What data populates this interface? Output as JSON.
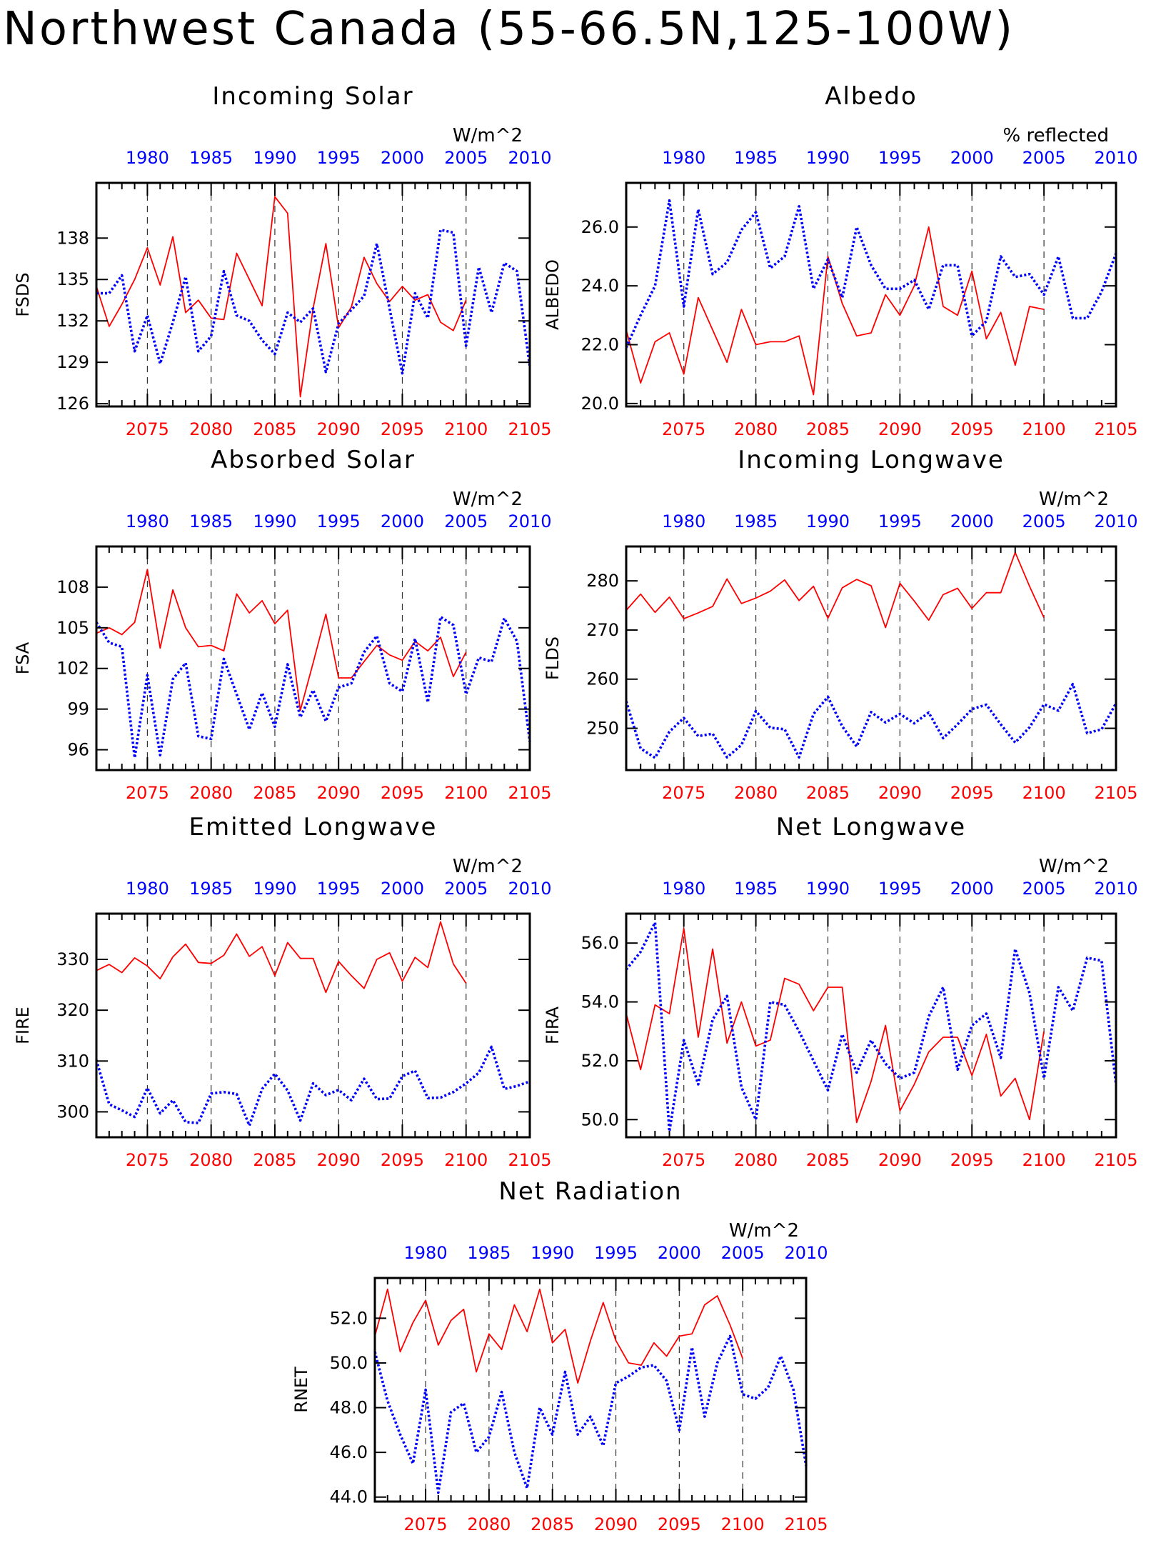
{
  "title": "Northwest Canada (55-66.5N,125-100W)",
  "colors": {
    "future": "#ff0000",
    "historical": "#0000ff",
    "axis": "#000000"
  },
  "chart_data": [
    {
      "id": "fsds",
      "type": "line",
      "title": "Incoming Solar",
      "ylabel": "FSDS",
      "units": "W/m^2",
      "ylim": [
        125.8,
        142
      ],
      "yticks": [
        126,
        129,
        132,
        135,
        138
      ],
      "ytick_labels": [
        "126",
        "129",
        "132",
        "135",
        "138"
      ],
      "bottom_axis": {
        "range": [
          2071,
          2105
        ],
        "major": [
          2075,
          2080,
          2085,
          2090,
          2095,
          2100,
          2105
        ],
        "labels": [
          "2075",
          "2080",
          "2085",
          "2090",
          "2095",
          "2100",
          "2105"
        ]
      },
      "top_axis": {
        "range": [
          1976,
          2010
        ],
        "major": [
          1980,
          1985,
          1990,
          1995,
          2000,
          2005,
          2010
        ],
        "labels": [
          "1980",
          "1985",
          "1990",
          "1995",
          "2000",
          "2005",
          "2010"
        ]
      },
      "gridlines_x": [
        2075,
        2080,
        2085,
        2090,
        2095,
        2100
      ],
      "series": [
        {
          "x0": 2071,
          "style": "solid",
          "color": "#ff0000",
          "values": [
            134.5,
            131.6,
            133.2,
            135.0,
            137.3,
            134.6,
            138.1,
            132.6,
            133.5,
            132.2,
            132.1,
            136.9,
            135.0,
            133.1,
            141.0,
            139.8,
            126.5,
            132.9,
            137.6,
            131.5,
            133.0,
            136.6,
            134.7,
            133.4,
            134.5,
            133.5,
            133.9,
            131.9,
            131.3,
            133.5
          ]
        },
        {
          "x0": 2071,
          "style": "dotted",
          "color": "#0000ff",
          "values": [
            134.0,
            134.0,
            135.3,
            129.8,
            132.4,
            128.9,
            131.9,
            135.2,
            129.8,
            130.9,
            135.6,
            132.4,
            132.0,
            130.6,
            129.6,
            132.6,
            131.9,
            132.9,
            128.3,
            131.8,
            132.8,
            133.8,
            137.6,
            132.9,
            128.2,
            134.0,
            132.2,
            138.6,
            138.4,
            130.2,
            135.9,
            132.6,
            136.2,
            135.6,
            128.7
          ]
        }
      ]
    },
    {
      "id": "albedo",
      "type": "line",
      "title": "Albedo",
      "ylabel": "ALBEDO",
      "units": "% reflected",
      "ylim": [
        19.9,
        27.5
      ],
      "yticks": [
        20,
        22,
        24,
        26
      ],
      "ytick_labels": [
        "20.0",
        "22.0",
        "24.0",
        "26.0"
      ],
      "bottom_axis": {
        "range": [
          2071,
          2105
        ],
        "major": [
          2075,
          2080,
          2085,
          2090,
          2095,
          2100,
          2105
        ],
        "labels": [
          "2075",
          "2080",
          "2085",
          "2090",
          "2095",
          "2100",
          "2105"
        ]
      },
      "top_axis": {
        "range": [
          1976,
          2010
        ],
        "major": [
          1980,
          1985,
          1990,
          1995,
          2000,
          2005,
          2010
        ],
        "labels": [
          "1980",
          "1985",
          "1990",
          "1995",
          "2000",
          "2005",
          "2010"
        ]
      },
      "gridlines_x": [
        2075,
        2080,
        2085,
        2090,
        2095,
        2100
      ],
      "series": [
        {
          "x0": 2071,
          "style": "solid",
          "color": "#ff0000",
          "values": [
            22.5,
            20.7,
            22.1,
            22.4,
            21.0,
            23.6,
            22.5,
            21.4,
            23.2,
            22.0,
            22.1,
            22.1,
            22.3,
            20.3,
            25.0,
            23.4,
            22.3,
            22.4,
            23.7,
            23.0,
            24.0,
            26.0,
            23.3,
            23.0,
            24.5,
            22.2,
            23.1,
            21.3,
            23.3,
            23.2
          ]
        },
        {
          "x0": 2071,
          "style": "dotted",
          "color": "#0000ff",
          "values": [
            21.9,
            23.0,
            24.0,
            26.9,
            23.3,
            26.6,
            24.4,
            24.8,
            25.9,
            26.5,
            24.6,
            25.0,
            26.7,
            23.9,
            24.9,
            23.6,
            26.0,
            24.7,
            23.9,
            23.9,
            24.2,
            23.2,
            24.7,
            24.7,
            22.3,
            22.8,
            25.0,
            24.3,
            24.4,
            23.7,
            25.0,
            22.9,
            22.9,
            23.8,
            25.1
          ]
        }
      ]
    },
    {
      "id": "fsa",
      "type": "line",
      "title": "Absorbed Solar",
      "ylabel": "FSA",
      "units": "W/m^2",
      "ylim": [
        94.5,
        111
      ],
      "yticks": [
        96,
        99,
        102,
        105,
        108
      ],
      "ytick_labels": [
        "96",
        "99",
        "102",
        "105",
        "108"
      ],
      "bottom_axis": {
        "range": [
          2071,
          2105
        ],
        "major": [
          2075,
          2080,
          2085,
          2090,
          2095,
          2100,
          2105
        ],
        "labels": [
          "2075",
          "2080",
          "2085",
          "2090",
          "2095",
          "2100",
          "2105"
        ]
      },
      "top_axis": {
        "range": [
          1976,
          2010
        ],
        "major": [
          1980,
          1985,
          1990,
          1995,
          2000,
          2005,
          2010
        ],
        "labels": [
          "1980",
          "1985",
          "1990",
          "1995",
          "2000",
          "2005",
          "2010"
        ]
      },
      "gridlines_x": [
        2075,
        2080,
        2085,
        2090,
        2095,
        2100
      ],
      "series": [
        {
          "x0": 2071,
          "style": "solid",
          "color": "#ff0000",
          "values": [
            104.6,
            105.0,
            104.5,
            105.4,
            109.3,
            103.5,
            107.8,
            105.0,
            103.6,
            103.7,
            103.3,
            107.5,
            106.1,
            107.0,
            105.3,
            106.3,
            98.9,
            102.4,
            106.0,
            101.3,
            101.3,
            102.5,
            103.7,
            103.0,
            102.6,
            104.0,
            103.3,
            104.3,
            101.4,
            103.2
          ]
        },
        {
          "x0": 2071,
          "style": "dotted",
          "color": "#0000ff",
          "values": [
            105.4,
            103.9,
            103.6,
            95.4,
            101.5,
            95.6,
            101.2,
            102.4,
            97.0,
            96.8,
            102.7,
            100.1,
            97.5,
            100.2,
            97.7,
            102.3,
            98.4,
            100.4,
            98.1,
            100.6,
            100.9,
            103.2,
            104.4,
            100.9,
            100.3,
            104.2,
            99.5,
            105.8,
            105.2,
            100.1,
            102.8,
            102.5,
            105.7,
            104.0,
            96.6
          ]
        }
      ]
    },
    {
      "id": "flds",
      "type": "line",
      "title": "Incoming Longwave",
      "ylabel": "FLDS",
      "units": "W/m^2",
      "ylim": [
        241.5,
        287
      ],
      "yticks": [
        250,
        260,
        270,
        280
      ],
      "ytick_labels": [
        "250",
        "260",
        "270",
        "280"
      ],
      "bottom_axis": {
        "range": [
          2071,
          2105
        ],
        "major": [
          2075,
          2080,
          2085,
          2090,
          2095,
          2100,
          2105
        ],
        "labels": [
          "2075",
          "2080",
          "2085",
          "2090",
          "2095",
          "2100",
          "2105"
        ]
      },
      "top_axis": {
        "range": [
          1976,
          2010
        ],
        "major": [
          1980,
          1985,
          1990,
          1995,
          2000,
          2005,
          2010
        ],
        "labels": [
          "1980",
          "1985",
          "1990",
          "1995",
          "2000",
          "2005",
          "2010"
        ]
      },
      "gridlines_x": [
        2075,
        2080,
        2085,
        2090,
        2095,
        2100
      ],
      "series": [
        {
          "x0": 2071,
          "style": "solid",
          "color": "#ff0000",
          "values": [
            274.0,
            277.3,
            273.6,
            276.7,
            272.3,
            273.5,
            274.8,
            280.4,
            275.4,
            276.5,
            277.9,
            280.2,
            276.0,
            278.9,
            272.4,
            278.6,
            280.3,
            279.0,
            270.5,
            279.5,
            275.9,
            272.0,
            277.2,
            278.5,
            274.4,
            277.6,
            277.6,
            285.8,
            278.9,
            272.5
          ]
        },
        {
          "x0": 2071,
          "style": "dotted",
          "color": "#0000ff",
          "values": [
            255.5,
            245.9,
            244.0,
            249.3,
            252.1,
            248.4,
            248.9,
            244.1,
            246.6,
            253.5,
            250.1,
            249.8,
            244.1,
            252.9,
            256.4,
            250.4,
            246.3,
            253.3,
            251.2,
            252.9,
            251.0,
            253.2,
            248.0,
            250.8,
            253.9,
            254.8,
            250.8,
            247.1,
            250.2,
            254.9,
            253.6,
            259.0,
            249.0,
            249.8,
            255.1
          ]
        }
      ]
    },
    {
      "id": "fire",
      "type": "line",
      "title": "Emitted Longwave",
      "ylabel": "FIRE",
      "units": "W/m^2",
      "ylim": [
        295,
        339
      ],
      "yticks": [
        300,
        310,
        320,
        330
      ],
      "ytick_labels": [
        "300",
        "310",
        "320",
        "330"
      ],
      "bottom_axis": {
        "range": [
          2071,
          2105
        ],
        "major": [
          2075,
          2080,
          2085,
          2090,
          2095,
          2100,
          2105
        ],
        "labels": [
          "2075",
          "2080",
          "2085",
          "2090",
          "2095",
          "2100",
          "2105"
        ]
      },
      "top_axis": {
        "range": [
          1976,
          2010
        ],
        "major": [
          1980,
          1985,
          1990,
          1995,
          2000,
          2005,
          2010
        ],
        "labels": [
          "1980",
          "1985",
          "1990",
          "1995",
          "2000",
          "2005",
          "2010"
        ]
      },
      "gridlines_x": [
        2075,
        2080,
        2085,
        2090,
        2095,
        2100
      ],
      "series": [
        {
          "x0": 2071,
          "style": "solid",
          "color": "#ff0000",
          "values": [
            327.8,
            329.0,
            327.4,
            330.3,
            328.7,
            326.2,
            330.5,
            333.0,
            329.4,
            329.2,
            330.8,
            335.0,
            330.6,
            332.5,
            326.8,
            333.3,
            330.2,
            330.2,
            323.5,
            329.6,
            326.8,
            324.3,
            330.0,
            331.3,
            325.7,
            330.4,
            328.4,
            337.4,
            329.1,
            325.3
          ]
        },
        {
          "x0": 2071,
          "style": "dotted",
          "color": "#0000ff",
          "values": [
            310.2,
            301.5,
            300.3,
            299.0,
            304.7,
            299.7,
            302.3,
            298.0,
            297.8,
            303.6,
            303.9,
            303.5,
            297.3,
            304.5,
            307.5,
            304.2,
            298.3,
            305.6,
            303.3,
            304.3,
            302.3,
            306.5,
            302.5,
            302.6,
            307.0,
            308.1,
            302.7,
            302.8,
            303.9,
            305.6,
            307.7,
            312.8,
            304.5,
            305.1,
            306.0
          ]
        }
      ]
    },
    {
      "id": "fira",
      "type": "line",
      "title": "Net Longwave",
      "ylabel": "FIRA",
      "units": "W/m^2",
      "ylim": [
        49.4,
        57.0
      ],
      "yticks": [
        50,
        52,
        54,
        56
      ],
      "ytick_labels": [
        "50.0",
        "52.0",
        "54.0",
        "56.0"
      ],
      "bottom_axis": {
        "range": [
          2071,
          2105
        ],
        "major": [
          2075,
          2080,
          2085,
          2090,
          2095,
          2100,
          2105
        ],
        "labels": [
          "2075",
          "2080",
          "2085",
          "2090",
          "2095",
          "2100",
          "2105"
        ]
      },
      "top_axis": {
        "range": [
          1976,
          2010
        ],
        "major": [
          1980,
          1985,
          1990,
          1995,
          2000,
          2005,
          2010
        ],
        "labels": [
          "1980",
          "1985",
          "1990",
          "1995",
          "2000",
          "2005",
          "2010"
        ]
      },
      "gridlines_x": [
        2075,
        2080,
        2085,
        2090,
        2095,
        2100
      ],
      "series": [
        {
          "x0": 2071,
          "style": "solid",
          "color": "#ff0000",
          "values": [
            53.6,
            51.7,
            53.9,
            53.6,
            56.5,
            52.8,
            55.8,
            52.6,
            54.0,
            52.5,
            52.7,
            54.8,
            54.6,
            53.7,
            54.5,
            54.5,
            49.9,
            51.3,
            53.2,
            50.3,
            51.2,
            52.3,
            52.8,
            52.8,
            51.5,
            52.9,
            50.8,
            51.4,
            50.0,
            53.0
          ]
        },
        {
          "x0": 2071,
          "style": "dotted",
          "color": "#0000ff",
          "values": [
            55.1,
            55.7,
            56.7,
            49.6,
            52.7,
            51.2,
            53.4,
            54.2,
            51.1,
            50.0,
            54.0,
            53.9,
            53.0,
            52.0,
            51.0,
            52.9,
            51.6,
            52.7,
            51.9,
            51.4,
            51.6,
            53.5,
            54.5,
            51.7,
            53.2,
            53.6,
            52.1,
            55.8,
            54.3,
            51.4,
            54.5,
            53.7,
            55.5,
            55.4,
            51.2
          ]
        }
      ]
    },
    {
      "id": "rnet",
      "type": "line",
      "title": "Net Radiation",
      "ylabel": "RNET",
      "units": "W/m^2",
      "ylim": [
        43.8,
        53.8
      ],
      "yticks": [
        44,
        46,
        48,
        50,
        52
      ],
      "ytick_labels": [
        "44.0",
        "46.0",
        "48.0",
        "50.0",
        "52.0"
      ],
      "bottom_axis": {
        "range": [
          2071,
          2105
        ],
        "major": [
          2075,
          2080,
          2085,
          2090,
          2095,
          2100,
          2105
        ],
        "labels": [
          "2075",
          "2080",
          "2085",
          "2090",
          "2095",
          "2100",
          "2105"
        ]
      },
      "top_axis": {
        "range": [
          1976,
          2010
        ],
        "major": [
          1980,
          1985,
          1990,
          1995,
          2000,
          2005,
          2010
        ],
        "labels": [
          "1980",
          "1985",
          "1990",
          "1995",
          "2000",
          "2005",
          "2010"
        ]
      },
      "gridlines_x": [
        2075,
        2080,
        2085,
        2090,
        2095,
        2100
      ],
      "series": [
        {
          "x0": 2071,
          "style": "solid",
          "color": "#ff0000",
          "values": [
            51.2,
            53.3,
            50.5,
            51.8,
            52.8,
            50.8,
            51.9,
            52.4,
            49.6,
            51.3,
            50.6,
            52.6,
            51.4,
            53.3,
            50.9,
            51.5,
            49.1,
            51.0,
            52.7,
            51.0,
            50.0,
            49.9,
            50.9,
            50.3,
            51.2,
            51.3,
            52.6,
            53.0,
            51.7,
            50.2
          ]
        },
        {
          "x0": 2071,
          "style": "dotted",
          "color": "#0000ff",
          "values": [
            50.5,
            48.3,
            46.8,
            45.5,
            48.8,
            44.2,
            47.8,
            48.2,
            46.0,
            46.7,
            48.7,
            46.0,
            44.4,
            48.0,
            46.8,
            49.6,
            46.8,
            47.6,
            46.3,
            49.1,
            49.4,
            49.8,
            49.9,
            49.2,
            47.0,
            50.7,
            47.6,
            50.0,
            51.2,
            48.6,
            48.4,
            48.9,
            50.3,
            48.8,
            45.4
          ]
        }
      ]
    }
  ]
}
